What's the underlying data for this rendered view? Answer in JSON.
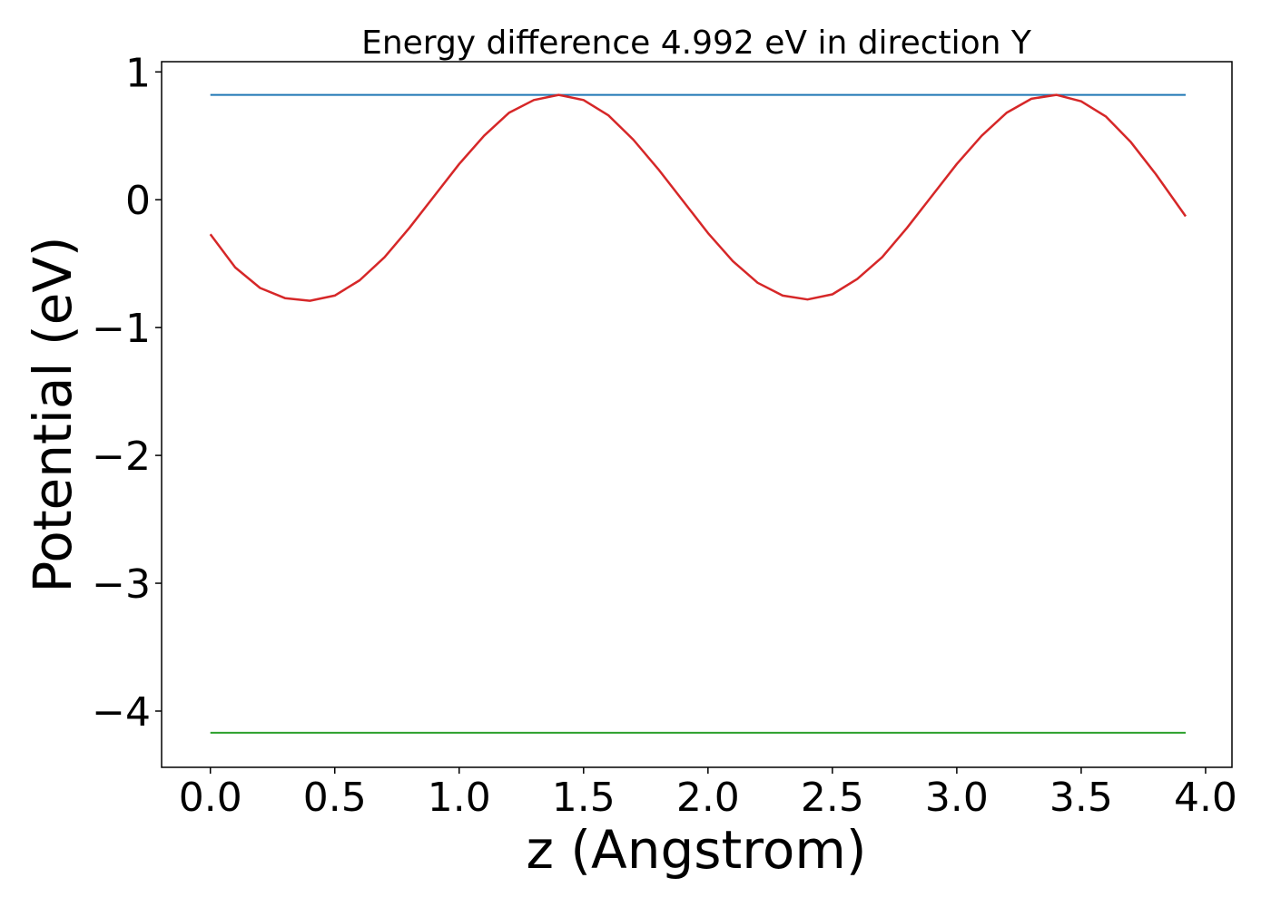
{
  "chart_data": {
    "type": "line",
    "title": "Energy difference 4.992 eV in direction Y",
    "xlabel": "z (Angstrom)",
    "ylabel": "Potential (eV)",
    "xlim": [
      -0.196,
      4.106
    ],
    "ylim": [
      -4.44,
      1.08
    ],
    "x_ticks": [
      0.0,
      0.5,
      1.0,
      1.5,
      2.0,
      2.5,
      3.0,
      3.5,
      4.0
    ],
    "x_tick_labels": [
      "0.0",
      "0.5",
      "1.0",
      "1.5",
      "2.0",
      "2.5",
      "3.0",
      "3.5",
      "4.0"
    ],
    "y_ticks": [
      1,
      0,
      -1,
      -2,
      -3,
      -4
    ],
    "y_tick_labels": [
      "1",
      "0",
      "−1",
      "−2",
      "−3",
      "−4"
    ],
    "grid": false,
    "series": [
      {
        "color": "#1f77b4",
        "style": "horizontal",
        "x": [
          0.0,
          3.92
        ],
        "y": [
          0.82,
          0.82
        ]
      },
      {
        "color": "#2ca02c",
        "style": "horizontal",
        "x": [
          0.0,
          3.92
        ],
        "y": [
          -4.17,
          -4.17
        ]
      },
      {
        "color": "#d62728",
        "style": "curve",
        "x": [
          0.0,
          0.1,
          0.2,
          0.3,
          0.4,
          0.5,
          0.6,
          0.7,
          0.8,
          0.9,
          1.0,
          1.1,
          1.2,
          1.3,
          1.4,
          1.5,
          1.6,
          1.7,
          1.8,
          1.9,
          2.0,
          2.1,
          2.2,
          2.3,
          2.4,
          2.5,
          2.6,
          2.7,
          2.8,
          2.9,
          3.0,
          3.1,
          3.2,
          3.3,
          3.4,
          3.5,
          3.6,
          3.7,
          3.8,
          3.92
        ],
        "y": [
          -0.27,
          -0.53,
          -0.69,
          -0.77,
          -0.79,
          -0.75,
          -0.63,
          -0.45,
          -0.22,
          0.03,
          0.28,
          0.5,
          0.68,
          0.78,
          0.82,
          0.78,
          0.66,
          0.47,
          0.24,
          -0.01,
          -0.26,
          -0.48,
          -0.65,
          -0.75,
          -0.78,
          -0.74,
          -0.62,
          -0.45,
          -0.22,
          0.03,
          0.28,
          0.5,
          0.68,
          0.79,
          0.82,
          0.77,
          0.65,
          0.45,
          0.2,
          -0.13
        ]
      }
    ]
  }
}
